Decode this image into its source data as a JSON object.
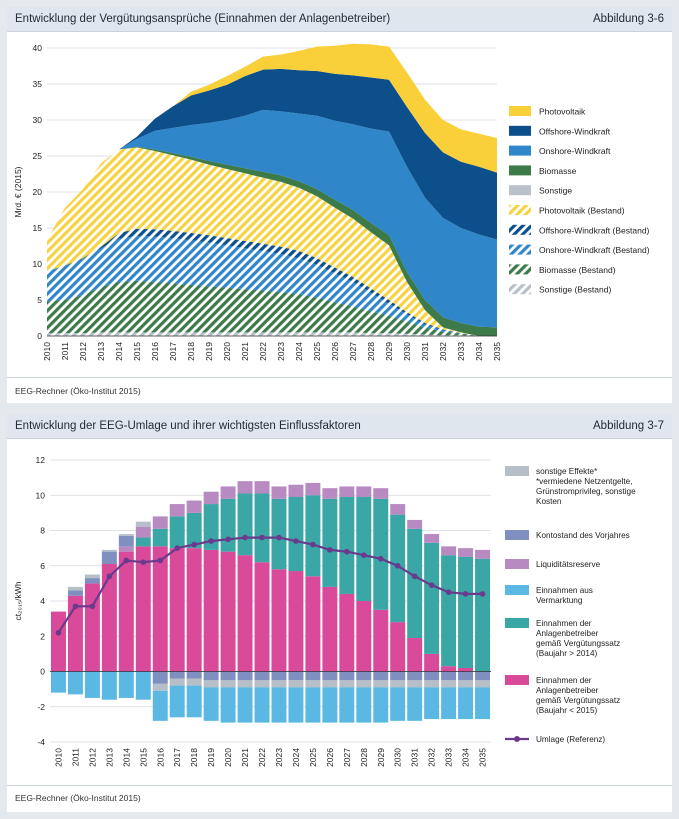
{
  "figures": [
    {
      "title": "Entwicklung der Vergütungsansprüche (Einnahmen der Anlagenbetreiber)",
      "figure_label": "Abbildung 3-6",
      "source": "EEG-Rechner (Öko-Institut 2015)"
    },
    {
      "title": "Entwicklung der EEG-Umlage und ihrer wichtigsten Einflussfaktoren",
      "figure_label": "Abbildung 3-7",
      "source": "EEG-Rechner (Öko-Institut 2015)"
    }
  ],
  "chart_data": [
    {
      "type": "area",
      "stacked": true,
      "ylabel": "Mrd. € (2015)",
      "ylim": [
        0,
        40
      ],
      "yticks": [
        0,
        5,
        10,
        15,
        20,
        25,
        30,
        35,
        40
      ],
      "grid": true,
      "legend_position": "right",
      "x": [
        2010,
        2011,
        2012,
        2013,
        2014,
        2015,
        2016,
        2017,
        2018,
        2019,
        2020,
        2021,
        2022,
        2023,
        2024,
        2025,
        2026,
        2027,
        2028,
        2029,
        2030,
        2031,
        2032,
        2033,
        2034,
        2035
      ],
      "series": [
        {
          "name": "Sonstige (Bestand)",
          "color": "#b9c0ca",
          "hatched": true,
          "values": [
            0.4,
            0.4,
            0.4,
            0.5,
            0.5,
            0.5,
            0.5,
            0.5,
            0.5,
            0.5,
            0.5,
            0.5,
            0.5,
            0.5,
            0.5,
            0.5,
            0.5,
            0.5,
            0.4,
            0.4,
            0.3,
            0.2,
            0.1,
            0.1,
            0.0,
            0.0
          ]
        },
        {
          "name": "Biomasse (Bestand)",
          "color": "#3d7a4a",
          "hatched": true,
          "values": [
            4.4,
            4.6,
            5.3,
            6.3,
            7.0,
            7.2,
            7.0,
            6.8,
            6.6,
            6.4,
            6.2,
            6.0,
            5.8,
            5.6,
            5.3,
            4.8,
            4.2,
            3.6,
            3.0,
            2.4,
            1.7,
            1.0,
            0.5,
            0.2,
            0.0,
            0.0
          ]
        },
        {
          "name": "Onshore-Windkraft (Bestand)",
          "color": "#2f86c9",
          "hatched": true,
          "values": [
            4.2,
            4.8,
            5.0,
            5.4,
            6.0,
            6.2,
            6.3,
            6.3,
            6.2,
            6.1,
            5.9,
            5.7,
            5.5,
            5.3,
            5.0,
            4.6,
            4.0,
            3.4,
            2.6,
            1.7,
            1.0,
            0.4,
            0.2,
            0.1,
            0.0,
            0.0
          ]
        },
        {
          "name": "Offshore-Windkraft (Bestand)",
          "color": "#0b4f8c",
          "hatched": true,
          "values": [
            0.0,
            0.0,
            0.1,
            0.2,
            0.8,
            1.0,
            1.0,
            1.0,
            1.0,
            1.0,
            1.0,
            1.0,
            1.0,
            1.0,
            1.0,
            0.9,
            0.8,
            0.7,
            0.6,
            0.5,
            0.3,
            0.2,
            0.1,
            0.0,
            0.0,
            0.0
          ]
        },
        {
          "name": "Photovoltaik (Bestand)",
          "color": "#f5d341",
          "hatched": true,
          "values": [
            4.3,
            8.0,
            9.6,
            11.6,
            11.6,
            11.3,
            10.9,
            10.5,
            10.2,
            9.8,
            9.6,
            9.4,
            9.2,
            9.0,
            8.8,
            8.6,
            8.3,
            8.1,
            7.8,
            7.6,
            4.2,
            1.8,
            0.3,
            0.1,
            0.0,
            0.0
          ]
        },
        {
          "name": "Sonstige",
          "color": "#b9c0ca",
          "hatched": false,
          "values": [
            0,
            0,
            0,
            0,
            0,
            0,
            0,
            0,
            0,
            0,
            0,
            0,
            0,
            0,
            0,
            0,
            0,
            0,
            0,
            0,
            0,
            0,
            0,
            0,
            0,
            0
          ]
        },
        {
          "name": "Biomasse",
          "color": "#3d7a4a",
          "hatched": false,
          "values": [
            0.0,
            0.0,
            0.0,
            0.0,
            0.0,
            0.1,
            0.2,
            0.3,
            0.4,
            0.5,
            0.6,
            0.7,
            0.8,
            0.9,
            0.9,
            1.0,
            1.1,
            1.2,
            1.3,
            1.4,
            1.4,
            1.4,
            1.4,
            1.3,
            1.3,
            1.2
          ]
        },
        {
          "name": "Onshore-Windkraft",
          "color": "#2f86c9",
          "hatched": false,
          "values": [
            0.0,
            0.0,
            0.0,
            0.0,
            0.0,
            1.1,
            2.6,
            3.5,
            4.4,
            5.3,
            6.2,
            7.3,
            8.6,
            8.9,
            9.4,
            10.2,
            11.0,
            11.9,
            13.1,
            14.4,
            14.6,
            14.2,
            13.8,
            13.2,
            12.8,
            12.2
          ]
        },
        {
          "name": "Offshore-Windkraft",
          "color": "#0d4f8b",
          "hatched": false,
          "values": [
            0.0,
            0.0,
            0.0,
            0.0,
            0.0,
            0.3,
            1.7,
            3.0,
            4.1,
            4.5,
            4.9,
            5.5,
            5.6,
            5.9,
            6.0,
            6.2,
            6.5,
            6.8,
            7.1,
            7.2,
            8.3,
            9.0,
            9.1,
            9.2,
            9.4,
            9.3
          ]
        },
        {
          "name": "Photovoltaik",
          "color": "#f9cf3a",
          "hatched": false,
          "values": [
            0.0,
            0.0,
            0.0,
            0.0,
            0.0,
            0.0,
            0.0,
            0.0,
            0.5,
            0.8,
            1.2,
            1.3,
            1.8,
            2.0,
            2.7,
            3.4,
            3.9,
            4.4,
            4.6,
            4.6,
            4.8,
            4.6,
            4.5,
            4.5,
            4.6,
            4.8
          ]
        }
      ]
    },
    {
      "type": "bar",
      "stacked": true,
      "ylabel": "ct₂₀₁₅/kWh",
      "ylim": [
        -4,
        12
      ],
      "yticks": [
        -4,
        -2,
        0,
        2,
        4,
        6,
        8,
        10,
        12
      ],
      "grid": true,
      "legend_position": "right",
      "categories": [
        2010,
        2011,
        2012,
        2013,
        2014,
        2015,
        2016,
        2017,
        2018,
        2019,
        2020,
        2021,
        2022,
        2023,
        2024,
        2025,
        2026,
        2027,
        2028,
        2029,
        2030,
        2031,
        2032,
        2033,
        2034,
        2035
      ],
      "series": [
        {
          "name": "sonstige Effekte*",
          "note": "*vermiedene Netzentgelte, Grünstromprivileg, sonstige Kosten",
          "color": "#b6bec8",
          "values": [
            0.0,
            0.2,
            0.2,
            0.1,
            0.1,
            0.3,
            -0.4,
            -0.4,
            -0.4,
            -0.4,
            -0.4,
            -0.4,
            -0.4,
            -0.4,
            -0.4,
            -0.4,
            -0.4,
            -0.4,
            -0.4,
            -0.4,
            -0.4,
            -0.4,
            -0.4,
            -0.4,
            -0.4,
            -0.4
          ]
        },
        {
          "name": "Kontostand des Vorjahres",
          "color": "#7f8fbf",
          "values": [
            0.0,
            0.3,
            0.3,
            0.7,
            0.6,
            0.0,
            -0.7,
            -0.4,
            -0.4,
            -0.5,
            -0.5,
            -0.5,
            -0.5,
            -0.5,
            -0.5,
            -0.5,
            -0.5,
            -0.5,
            -0.5,
            -0.5,
            -0.5,
            -0.5,
            -0.5,
            -0.5,
            -0.5,
            -0.5
          ]
        },
        {
          "name": "Liquiditätsreserve",
          "color": "#b88ac2",
          "values": [
            0.0,
            0.0,
            0.0,
            0.0,
            0.3,
            0.6,
            0.7,
            0.7,
            0.7,
            0.7,
            0.7,
            0.7,
            0.7,
            0.7,
            0.7,
            0.7,
            0.6,
            0.6,
            0.6,
            0.6,
            0.6,
            0.5,
            0.5,
            0.5,
            0.5,
            0.5
          ]
        },
        {
          "name": "Einnahmen aus Vermarktung",
          "color": "#5bb8e3",
          "values": [
            -1.2,
            -1.3,
            -1.5,
            -1.6,
            -1.5,
            -1.6,
            -1.7,
            -1.8,
            -1.8,
            -1.9,
            -2.0,
            -2.0,
            -2.0,
            -2.0,
            -2.0,
            -2.0,
            -2.0,
            -2.0,
            -2.0,
            -2.0,
            -1.9,
            -1.9,
            -1.8,
            -1.8,
            -1.8,
            -1.8
          ]
        },
        {
          "name": "Einnahmen der Anlagenbetreiber gemäß Vergütungssatz (Baujahr > 2014)",
          "color": "#3aa6a6",
          "values": [
            0.0,
            0.0,
            0.0,
            0.0,
            0.0,
            0.5,
            1.0,
            1.8,
            2.0,
            2.6,
            3.0,
            3.5,
            3.9,
            4.0,
            4.2,
            4.6,
            5.0,
            5.5,
            5.9,
            6.3,
            6.1,
            6.2,
            6.3,
            6.3,
            6.3,
            6.4
          ]
        },
        {
          "name": "Einnahmen der Anlagenbetreiber gemäß Vergütungssatz (Baujahr < 2015)",
          "color": "#d94a9a",
          "values": [
            3.4,
            4.3,
            5.0,
            6.1,
            6.8,
            7.1,
            7.1,
            7.0,
            7.0,
            6.9,
            6.8,
            6.6,
            6.2,
            5.8,
            5.7,
            5.4,
            4.8,
            4.4,
            4.0,
            3.5,
            2.8,
            1.9,
            1.0,
            0.3,
            0.2,
            0.0
          ]
        },
        {
          "name": "Umlage (Referenz)",
          "type": "line",
          "color": "#6a3a8c",
          "values": [
            2.2,
            3.7,
            3.7,
            5.4,
            6.3,
            6.2,
            6.3,
            7.0,
            7.2,
            7.4,
            7.5,
            7.6,
            7.6,
            7.6,
            7.4,
            7.2,
            6.9,
            6.8,
            6.6,
            6.4,
            6.0,
            5.4,
            4.9,
            4.5,
            4.4,
            4.4
          ]
        }
      ]
    }
  ]
}
